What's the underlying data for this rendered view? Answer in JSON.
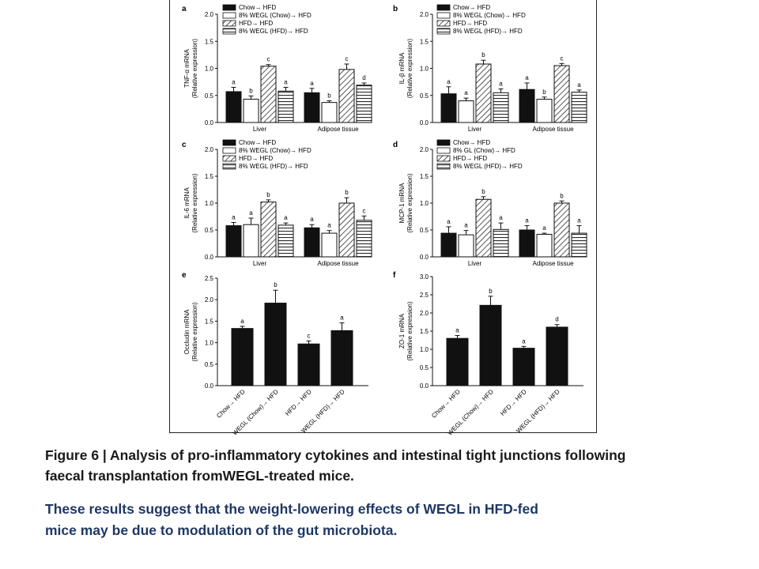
{
  "figure": {
    "panels": [
      {
        "label": "a",
        "ylabel_line1": "TNF-α mRNA",
        "ylabel_line2": "(Relative expression)",
        "legend_labels": [
          "Chow→ HFD",
          "8% WEGL (Chow)→ HFD",
          "HFD→ HFD",
          "8% WEGL (HFD)→ HFD"
        ]
      },
      {
        "label": "b",
        "ylabel_line1": "IL-β mRNA",
        "ylabel_line2": "(Relative expression)",
        "legend_labels": [
          "Chow→ HFD",
          "8% WEGL (Chow)→ HFD",
          "HFD→ HFD",
          "8% WEGL (HFD)→ HFD"
        ]
      },
      {
        "label": "c",
        "ylabel_line1": "IL-6 mRNA",
        "ylabel_line2": "(Relative expression)",
        "legend_labels": [
          "Chow→ HFD",
          "8% WEGL (Chow)→ HFD",
          "HFD→ HFD",
          "8% WEGL (HFD)→ HFD"
        ]
      },
      {
        "label": "d",
        "ylabel_line1": "MCP-1 mRNA",
        "ylabel_line2": "(Relative expression)",
        "legend_labels": [
          "Chow→ HFD",
          "8% GL (Chow)→ HFD",
          "HFD→ HFD",
          "8% WEGL (HFD)→ HFD"
        ]
      },
      {
        "label": "e",
        "ylabel_line1": "Occludin mRNA",
        "ylabel_line2": "(Relative expression)",
        "legend_labels": []
      },
      {
        "label": "f",
        "ylabel_line1": "ZO-1 mRNA",
        "ylabel_line2": "(Relative expression)",
        "legend_labels": []
      }
    ]
  },
  "chart_data": [
    {
      "type": "bar",
      "panel": "a",
      "ylabel": "TNF-α mRNA (Relative expression)",
      "ylim": [
        0,
        2.0
      ],
      "yticks": [
        "0.0",
        "0.5",
        "1.0",
        "1.5",
        "2.0"
      ],
      "categories": [
        "Liver",
        "Adipose tissue"
      ],
      "series": [
        {
          "name": "Chow→ HFD",
          "values": [
            0.57,
            0.55
          ],
          "errors": [
            0.08,
            0.08
          ],
          "letters": [
            "a",
            "a"
          ]
        },
        {
          "name": "8% WEGL (Chow)→ HFD",
          "values": [
            0.43,
            0.37
          ],
          "errors": [
            0.06,
            0.03
          ],
          "letters": [
            "b",
            "b"
          ]
        },
        {
          "name": "HFD→ HFD",
          "values": [
            1.04,
            0.98
          ],
          "errors": [
            0.03,
            0.1
          ],
          "letters": [
            "c",
            "c"
          ]
        },
        {
          "name": "8% WEGL (HFD)→ HFD",
          "values": [
            0.58,
            0.69
          ],
          "errors": [
            0.07,
            0.04
          ],
          "letters": [
            "a",
            "d"
          ]
        }
      ]
    },
    {
      "type": "bar",
      "panel": "b",
      "ylabel": "IL-β mRNA (Relative expression)",
      "ylim": [
        0,
        2.0
      ],
      "yticks": [
        "0.0",
        "0.5",
        "1.0",
        "1.5",
        "2.0"
      ],
      "categories": [
        "Liver",
        "Adipose tissue"
      ],
      "series": [
        {
          "name": "Chow→ HFD",
          "values": [
            0.53,
            0.61
          ],
          "errors": [
            0.13,
            0.12
          ],
          "letters": [
            "a",
            "a"
          ]
        },
        {
          "name": "8% WEGL (Chow)→ HFD",
          "values": [
            0.4,
            0.43
          ],
          "errors": [
            0.05,
            0.04
          ],
          "letters": [
            "a",
            "b"
          ]
        },
        {
          "name": "HFD→ HFD",
          "values": [
            1.08,
            1.05
          ],
          "errors": [
            0.07,
            0.04
          ],
          "letters": [
            "b",
            "c"
          ]
        },
        {
          "name": "8% WEGL (HFD)→ HFD",
          "values": [
            0.55,
            0.56
          ],
          "errors": [
            0.07,
            0.04
          ],
          "letters": [
            "a",
            "a"
          ]
        }
      ]
    },
    {
      "type": "bar",
      "panel": "c",
      "ylabel": "IL-6 mRNA (Relative expression)",
      "ylim": [
        0,
        2.0
      ],
      "yticks": [
        "0.0",
        "0.5",
        "1.0",
        "1.5",
        "2.0"
      ],
      "categories": [
        "Liver",
        "Adipose tissue"
      ],
      "series": [
        {
          "name": "Chow→ HFD",
          "values": [
            0.58,
            0.54
          ],
          "errors": [
            0.06,
            0.06
          ],
          "letters": [
            "a",
            "a"
          ]
        },
        {
          "name": "8% WEGL (Chow)→ HFD",
          "values": [
            0.6,
            0.44
          ],
          "errors": [
            0.12,
            0.05
          ],
          "letters": [
            "a",
            "a"
          ]
        },
        {
          "name": "HFD→ HFD",
          "values": [
            1.02,
            1.0
          ],
          "errors": [
            0.04,
            0.1
          ],
          "letters": [
            "b",
            "b"
          ]
        },
        {
          "name": "8% WEGL (HFD)→ HFD",
          "values": [
            0.59,
            0.68
          ],
          "errors": [
            0.04,
            0.08
          ],
          "letters": [
            "a",
            "c"
          ]
        }
      ]
    },
    {
      "type": "bar",
      "panel": "d",
      "ylabel": "MCP-1 mRNA (Relative expression)",
      "ylim": [
        0,
        2.0
      ],
      "yticks": [
        "0.0",
        "0.5",
        "1.0",
        "1.5",
        "2.0"
      ],
      "categories": [
        "Liver",
        "Adipose tissue"
      ],
      "series": [
        {
          "name": "Chow→ HFD",
          "values": [
            0.44,
            0.5
          ],
          "errors": [
            0.12,
            0.08
          ],
          "letters": [
            "a",
            "a"
          ]
        },
        {
          "name": "8% GL (Chow)→ HFD",
          "values": [
            0.41,
            0.42
          ],
          "errors": [
            0.08,
            0.02
          ],
          "letters": [
            "a",
            "a"
          ]
        },
        {
          "name": "HFD→ HFD",
          "values": [
            1.07,
            1.0
          ],
          "errors": [
            0.05,
            0.04
          ],
          "letters": [
            "b",
            "b"
          ]
        },
        {
          "name": "8% WEGL (HFD)→ HFD",
          "values": [
            0.51,
            0.44
          ],
          "errors": [
            0.12,
            0.14
          ],
          "letters": [
            "a",
            "a"
          ]
        }
      ]
    },
    {
      "type": "bar",
      "panel": "e",
      "ylabel": "Occludin mRNA (Relative expression)",
      "ylim": [
        0,
        2.5
      ],
      "yticks": [
        "0.0",
        "0.5",
        "1.0",
        "1.5",
        "2.0",
        "2.5"
      ],
      "categories": [
        "Chow→ HFD",
        "WEGL (Chow)→ HFD",
        "HFD→ HFD",
        "WEGL (HFD)→ HFD"
      ],
      "values": [
        1.33,
        1.92,
        0.97,
        1.28
      ],
      "errors": [
        0.05,
        0.3,
        0.07,
        0.18
      ],
      "letters": [
        "a",
        "b",
        "c",
        "a"
      ]
    },
    {
      "type": "bar",
      "panel": "f",
      "ylabel": "ZO-1 mRNA (Relative expression)",
      "ylim": [
        0,
        3.0
      ],
      "yticks": [
        "0.0",
        "0.5",
        "1.0",
        "1.5",
        "2.0",
        "2.5",
        "3.0"
      ],
      "categories": [
        "Chow→ HFD",
        "WEGL (Chow)→ HFD",
        "HFD→ HFD",
        "WEGL (HFD)→ HFD"
      ],
      "values": [
        1.3,
        2.21,
        1.03,
        1.61
      ],
      "errors": [
        0.08,
        0.25,
        0.05,
        0.07
      ],
      "letters": [
        "a",
        "b",
        "a",
        "d"
      ]
    }
  ],
  "caption": {
    "title_line1": "Figure 6 | Analysis of pro-inflammatory cytokines and intestinal tight junctions following",
    "title_line2": "faecal transplantation fromWEGL-treated mice.",
    "summary_line1": "These results suggest that the weight-lowering effects of WEGL in HFD-fed",
    "summary_line2": "mice may be due to modulation of the gut microbiota."
  }
}
